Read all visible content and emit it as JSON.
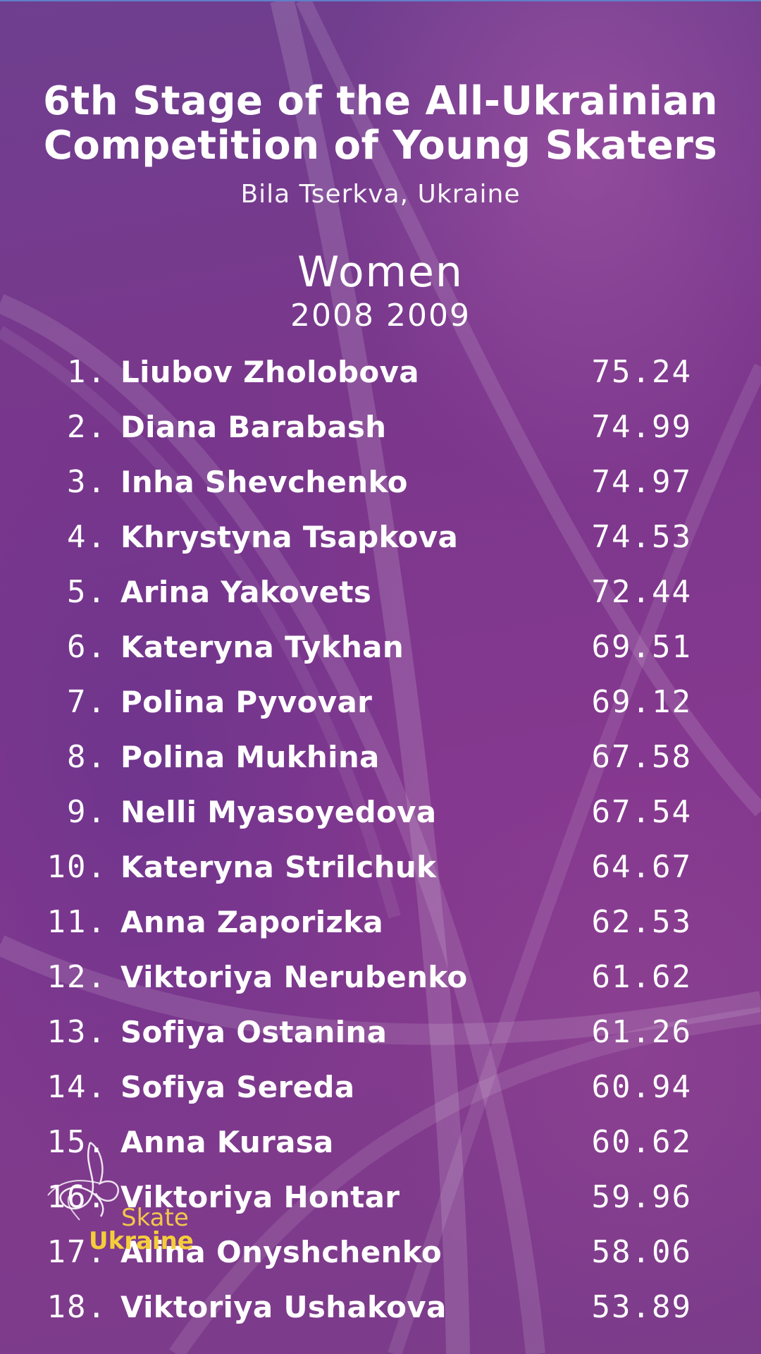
{
  "header": {
    "title_line1": "6th Stage of the All-Ukrainian",
    "title_line2": "Competition of Young Skaters",
    "location": "Bila Tserkva, Ukraine"
  },
  "category": {
    "name": "Women",
    "years": "2008 2009"
  },
  "results": [
    {
      "rank": "1.",
      "name": "Liubov Zholobova",
      "score": "75.24"
    },
    {
      "rank": "2.",
      "name": "Diana Barabash",
      "score": "74.99"
    },
    {
      "rank": "3.",
      "name": "Inha Shevchenko",
      "score": "74.97"
    },
    {
      "rank": "4.",
      "name": "Khrystyna Tsapkova",
      "score": "74.53"
    },
    {
      "rank": "5.",
      "name": "Arina Yakovets",
      "score": "72.44"
    },
    {
      "rank": "6.",
      "name": "Kateryna Tykhan",
      "score": "69.51"
    },
    {
      "rank": "7.",
      "name": "Polina Pyvovar",
      "score": "69.12"
    },
    {
      "rank": "8.",
      "name": "Polina Mukhina",
      "score": "67.58"
    },
    {
      "rank": "9.",
      "name": "Nelli Myasoyedova",
      "score": "67.54"
    },
    {
      "rank": "10.",
      "name": "Kateryna Strilchuk",
      "score": "64.67"
    },
    {
      "rank": "11.",
      "name": "Anna Zaporizka",
      "score": "62.53"
    },
    {
      "rank": "12.",
      "name": "Viktoriya Nerubenko",
      "score": "61.62"
    },
    {
      "rank": "13.",
      "name": "Sofiya Ostanina",
      "score": "61.26"
    },
    {
      "rank": "14.",
      "name": "Sofiya Sereda",
      "score": "60.94"
    },
    {
      "rank": "15.",
      "name": "Anna Kurasa",
      "score": "60.62"
    },
    {
      "rank": "16.",
      "name": "Viktoriya Hontar",
      "score": "59.96"
    },
    {
      "rank": "17.",
      "name": "Alina Onyshchenko",
      "score": "58.06"
    },
    {
      "rank": "18.",
      "name": "Viktoriya Ushakova",
      "score": "53.89"
    }
  ],
  "logo": {
    "line1": "Skate",
    "line2": "Ukraine",
    "accent_color": "#f5cd3a"
  },
  "colors": {
    "background": "#7b3a8e",
    "text": "#ffffff"
  }
}
